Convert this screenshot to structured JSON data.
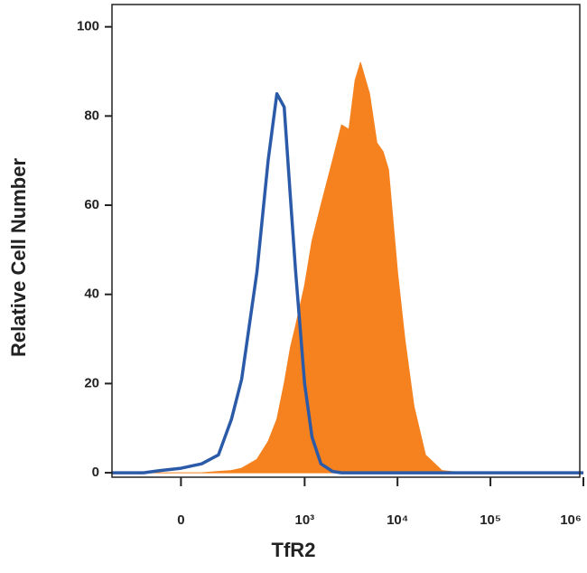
{
  "chart_data": {
    "type": "histogram-overlay",
    "xlabel": "TfR2",
    "ylabel": "Relative Cell Number",
    "xscale": "biexponential",
    "x": [
      -250,
      -150,
      -100,
      -50,
      0,
      50,
      100,
      150,
      200,
      300,
      400,
      500,
      600,
      700,
      800,
      1000,
      1200,
      1500,
      2000,
      2500,
      3000,
      3500,
      4000,
      5000,
      6000,
      7000,
      8000,
      10000,
      12000,
      15000,
      20000,
      30000,
      50000,
      100000,
      1000000
    ],
    "series": [
      {
        "color": "#f5821f",
        "fill": true,
        "values": [
          0,
          0,
          0,
          0,
          0,
          0,
          0.3,
          0.5,
          1,
          3,
          7,
          12,
          20,
          28,
          33,
          42,
          52,
          60,
          70,
          78,
          77,
          88,
          92,
          85,
          74,
          72,
          68,
          45,
          30,
          15,
          4,
          0.5,
          0,
          0,
          0
        ]
      },
      {
        "color": "#2b5ba8",
        "fill": false,
        "values": [
          0,
          0,
          0,
          0.5,
          1,
          2,
          4,
          12,
          21,
          45,
          70,
          85,
          82,
          62,
          45,
          20,
          8,
          2,
          0.3,
          0,
          0,
          0,
          0,
          0,
          0,
          0,
          0,
          0,
          0,
          0,
          0,
          0,
          0,
          0,
          0
        ]
      }
    ],
    "xlim": [
      -250,
      1000000
    ],
    "xticks": [
      0,
      {
        "value": 1000,
        "label": "10³"
      },
      {
        "value": 10000,
        "label": "10⁴"
      },
      {
        "value": 100000,
        "label": "10⁵"
      },
      {
        "value": 1000000,
        "label": "10⁶"
      }
    ],
    "ylim": [
      -1,
      105
    ],
    "yticks": [
      0,
      20,
      40,
      60,
      80,
      100
    ]
  }
}
